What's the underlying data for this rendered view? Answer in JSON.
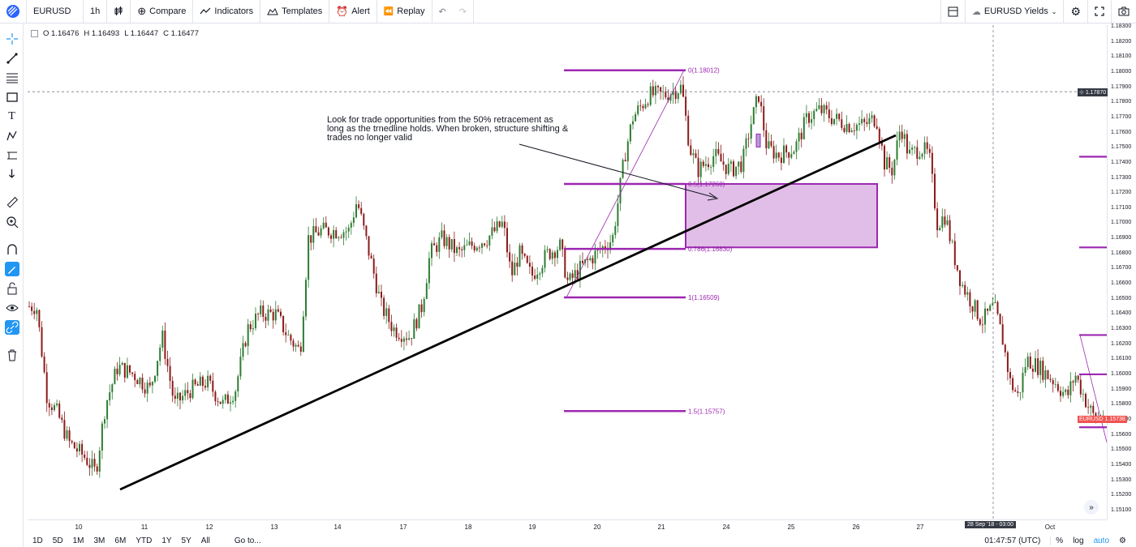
{
  "toolbar": {
    "symbol": "EURUSD",
    "interval": "1h",
    "compare": "Compare",
    "indicators": "Indicators",
    "templates": "Templates",
    "alert": "Alert",
    "replay": "Replay",
    "layout_name": "EURUSD Yields"
  },
  "ohlc": {
    "open": "O 1.16476",
    "high": "H 1.16493",
    "low": "L 1.16447",
    "close": "C 1.16477"
  },
  "annotation": "Look for trade opportunities from the 50% retracement as long as the trnedline holds. When broken, structure shifting & trades no longer valid",
  "fib_levels": [
    {
      "label": "0(1.18012)",
      "price": 1.18012
    },
    {
      "label": "0.5(1.17260)",
      "price": 1.1726
    },
    {
      "label": "0.786(1.16830)",
      "price": 1.1683
    },
    {
      "label": "1(1.16509)",
      "price": 1.16509
    },
    {
      "label": "1.5(1.15757)",
      "price": 1.15757
    }
  ],
  "price_axis": [
    "1.18300",
    "1.18200",
    "1.18100",
    "1.18000",
    "1.17900",
    "1.17800",
    "1.17700",
    "1.17600",
    "1.17500",
    "1.17400",
    "1.17300",
    "1.17200",
    "1.17100",
    "1.17000",
    "1.16900",
    "1.16800",
    "1.16700",
    "1.16600",
    "1.16500",
    "1.16400",
    "1.16300",
    "1.16200",
    "1.16100",
    "1.16000",
    "1.15900",
    "1.15800",
    "1.15700",
    "1.15600",
    "1.15500",
    "1.15400",
    "1.15300",
    "1.15200",
    "1.15100"
  ],
  "time_axis": [
    "10",
    "11",
    "12",
    "13",
    "14",
    "17",
    "18",
    "19",
    "20",
    "21",
    "24",
    "25",
    "26",
    "27",
    "Oct"
  ],
  "crosshair": {
    "price_label": "1.17870",
    "time_label": "28 Sep '18 - 03:00"
  },
  "last_price": {
    "symbol": "EURUSD",
    "value": "1.15738"
  },
  "bottom": {
    "ranges": [
      "1D",
      "5D",
      "1M",
      "3M",
      "6M",
      "YTD",
      "1Y",
      "5Y",
      "All"
    ],
    "goto": "Go to...",
    "clock": "01:47:57 (UTC)",
    "percent": "%",
    "log": "log",
    "auto": "auto"
  },
  "colors": {
    "up": "#26a69a",
    "down": "#ef5350",
    "candle_body_up": "#2e7d32",
    "candle_body_down": "#8b1a1a",
    "fib": "#9c27b0",
    "box_fill": "#e1bee7",
    "trendline": "#000000",
    "accent": "#2196f3",
    "last_price_tag": "#ef5350",
    "crosshair_tag": "#363a45"
  }
}
